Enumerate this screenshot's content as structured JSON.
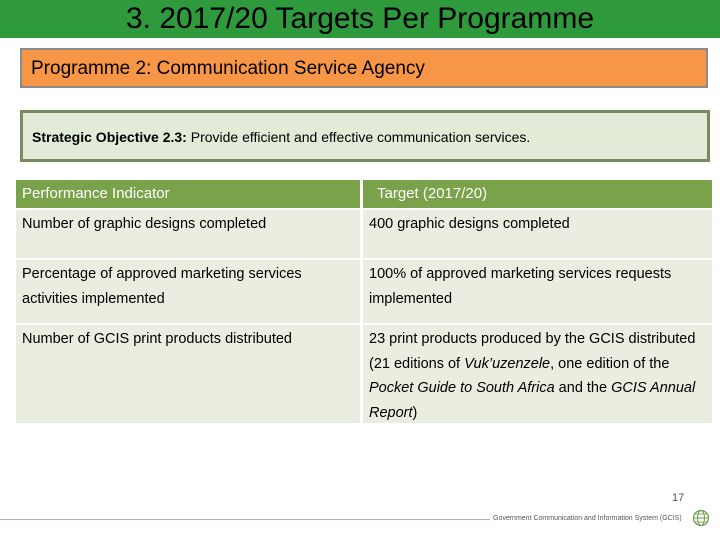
{
  "header": {
    "title": "3.  2017/20 Targets Per Programme"
  },
  "programme": {
    "label": "Programme 2: Communication Service Agency"
  },
  "objective": {
    "label": "Strategic Objective 2.3:",
    "text": " Provide efficient and effective communication services."
  },
  "table": {
    "headers": [
      "Performance Indicator",
      "Target (2017/20)"
    ],
    "rows": [
      {
        "indicator": "Number of graphic designs completed",
        "target": "400 graphic designs completed"
      },
      {
        "indicator": "Percentage of approved marketing services activities implemented",
        "target": "100% of approved marketing services requests implemented"
      },
      {
        "indicator": "Number of GCIS  print products  distributed",
        "target_parts": {
          "a": "23 print products produced by the GCIS distributed (21 editions of ",
          "b": "Vuk’uzenzele",
          "c": ", one edition of the ",
          "d": "Pocket Guide to South Africa",
          "e": " and the ",
          "f": "GCIS Annual Report",
          "g": ")"
        }
      }
    ]
  },
  "footer": {
    "page_number": "17",
    "org_name": "Government Communication and Information System (GCIS)"
  },
  "colors": {
    "title_bar": "#2e9a3c",
    "programme_box": "#f79646",
    "objective_box": "#e2ebd7",
    "table_header": "#7aa24a",
    "table_row": "#e9eee1"
  }
}
